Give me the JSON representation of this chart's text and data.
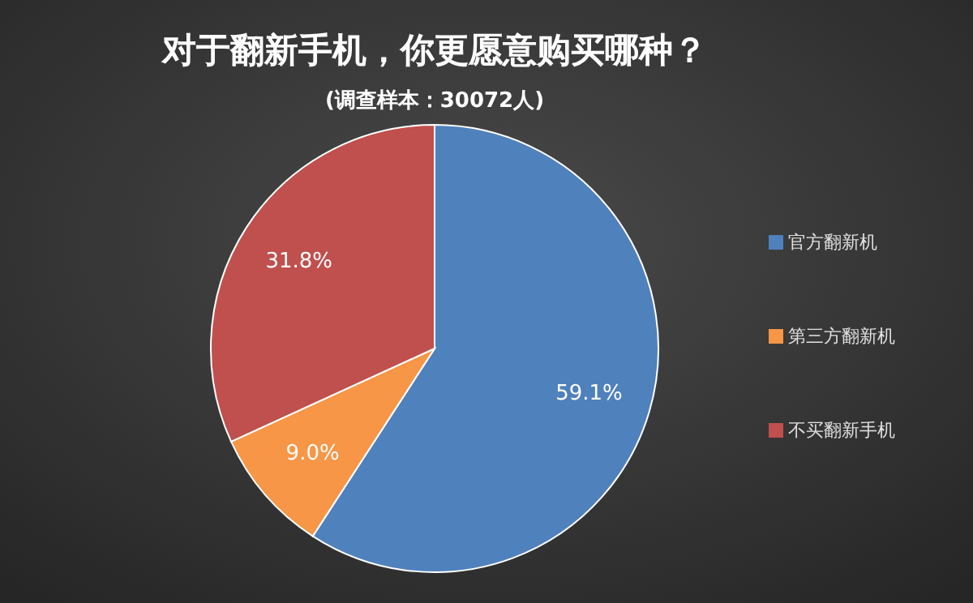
{
  "chart_data": {
    "type": "pie",
    "title": "对于翻新手机，你更愿意购买哪种？",
    "subtitle": "(调查样本：30072人)",
    "categories": [
      "官方翻新机",
      "第三方翻新机",
      "不买翻新手机"
    ],
    "values": [
      59.1,
      9.0,
      31.8
    ],
    "value_labels": [
      "59.1%",
      "9.0%",
      "31.8%"
    ],
    "colors": [
      "#4f81bd",
      "#f79646",
      "#c0504d"
    ],
    "legend": "right"
  }
}
